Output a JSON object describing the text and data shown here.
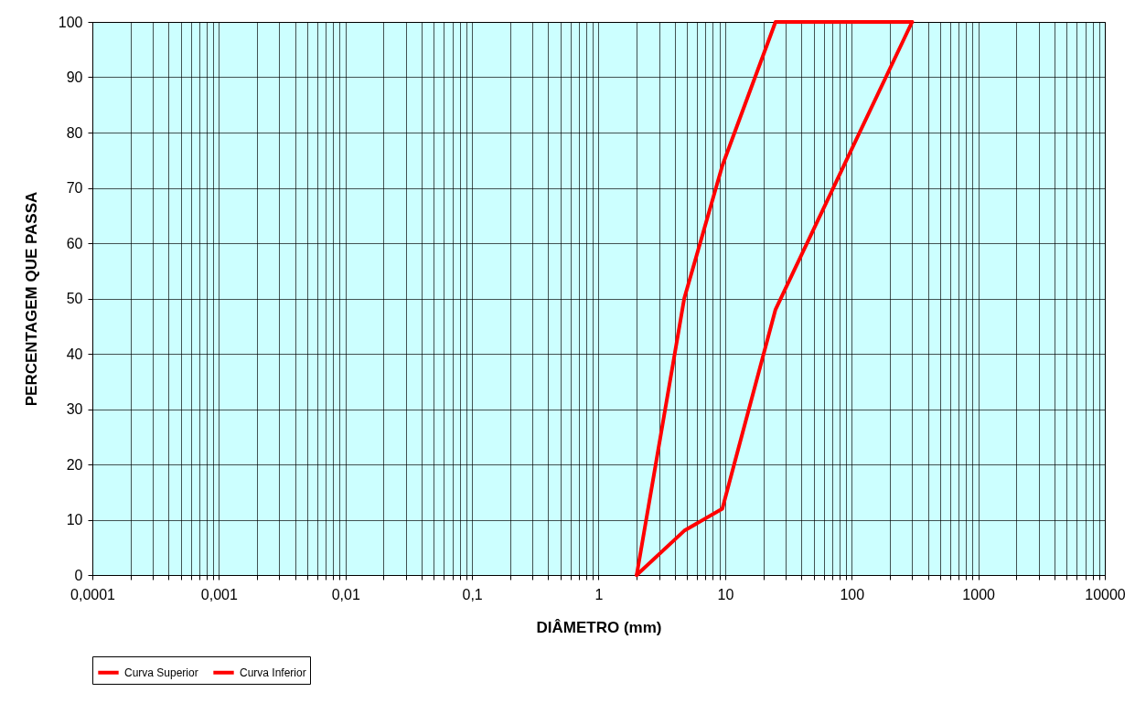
{
  "chart_data": {
    "type": "line",
    "xlabel": "DIÂMETRO (mm)",
    "ylabel": "PERCENTAGEM QUE PASSA",
    "series": [
      {
        "name": "Curva Superior",
        "color": "#ff0000",
        "x": [
          2,
          4.75,
          9.5,
          25,
          300
        ],
        "values": [
          0,
          50,
          74,
          100,
          100
        ]
      },
      {
        "name": "Curva Inferior",
        "color": "#ff0000",
        "x": [
          2,
          4.75,
          9.5,
          25,
          100,
          300
        ],
        "values": [
          0,
          8,
          12,
          48,
          77,
          100
        ]
      }
    ],
    "log": "x",
    "xlim": [
      0.0001,
      10000
    ],
    "ylim": [
      0,
      100
    ],
    "xticks": [
      {
        "value": 0.0001,
        "label": "0,0001"
      },
      {
        "value": 0.0002,
        "label": null
      },
      {
        "value": 0.0003,
        "label": null
      },
      {
        "value": 0.0004,
        "label": null
      },
      {
        "value": 0.0005,
        "label": null
      },
      {
        "value": 0.0006,
        "label": null
      },
      {
        "value": 0.0007,
        "label": null
      },
      {
        "value": 0.0008,
        "label": null
      },
      {
        "value": 0.0009,
        "label": null
      },
      {
        "value": 0.001,
        "label": "0,001"
      },
      {
        "value": 0.002,
        "label": null
      },
      {
        "value": 0.003,
        "label": null
      },
      {
        "value": 0.004,
        "label": null
      },
      {
        "value": 0.005,
        "label": null
      },
      {
        "value": 0.006,
        "label": null
      },
      {
        "value": 0.007,
        "label": null
      },
      {
        "value": 0.008,
        "label": null
      },
      {
        "value": 0.009,
        "label": null
      },
      {
        "value": 0.01,
        "label": "0,01"
      },
      {
        "value": 0.02,
        "label": null
      },
      {
        "value": 0.03,
        "label": null
      },
      {
        "value": 0.04,
        "label": null
      },
      {
        "value": 0.05,
        "label": null
      },
      {
        "value": 0.06,
        "label": null
      },
      {
        "value": 0.07,
        "label": null
      },
      {
        "value": 0.08,
        "label": null
      },
      {
        "value": 0.09,
        "label": null
      },
      {
        "value": 0.1,
        "label": "0,1"
      },
      {
        "value": 0.2,
        "label": null
      },
      {
        "value": 0.3,
        "label": null
      },
      {
        "value": 0.4,
        "label": null
      },
      {
        "value": 0.5,
        "label": null
      },
      {
        "value": 0.6,
        "label": null
      },
      {
        "value": 0.7,
        "label": null
      },
      {
        "value": 0.8,
        "label": null
      },
      {
        "value": 0.9,
        "label": null
      },
      1,
      {
        "value": 2,
        "label": null
      },
      {
        "value": 3,
        "label": null
      },
      {
        "value": 4,
        "label": null
      },
      {
        "value": 5,
        "label": null
      },
      {
        "value": 6,
        "label": null
      },
      {
        "value": 7,
        "label": null
      },
      {
        "value": 8,
        "label": null
      },
      {
        "value": 9,
        "label": null
      },
      10,
      {
        "value": 20,
        "label": null
      },
      {
        "value": 30,
        "label": null
      },
      {
        "value": 40,
        "label": null
      },
      {
        "value": 50,
        "label": null
      },
      {
        "value": 60,
        "label": null
      },
      {
        "value": 70,
        "label": null
      },
      {
        "value": 80,
        "label": null
      },
      {
        "value": 90,
        "label": null
      },
      100,
      {
        "value": 200,
        "label": null
      },
      {
        "value": 300,
        "label": null
      },
      {
        "value": 400,
        "label": null
      },
      {
        "value": 500,
        "label": null
      },
      {
        "value": 600,
        "label": null
      },
      {
        "value": 700,
        "label": null
      },
      {
        "value": 800,
        "label": null
      },
      {
        "value": 900,
        "label": null
      },
      1000,
      {
        "value": 2000,
        "label": null
      },
      {
        "value": 3000,
        "label": null
      },
      {
        "value": 4000,
        "label": null
      },
      {
        "value": 5000,
        "label": null
      },
      {
        "value": 6000,
        "label": null
      },
      {
        "value": 7000,
        "label": null
      },
      {
        "value": 8000,
        "label": null
      },
      {
        "value": 9000,
        "label": null
      },
      10000
    ],
    "yticks": [
      0,
      10,
      20,
      30,
      40,
      50,
      60,
      70,
      80,
      90,
      100
    ],
    "grid": true,
    "legend": "bottom",
    "marker": "none",
    "line_style": "solid"
  }
}
